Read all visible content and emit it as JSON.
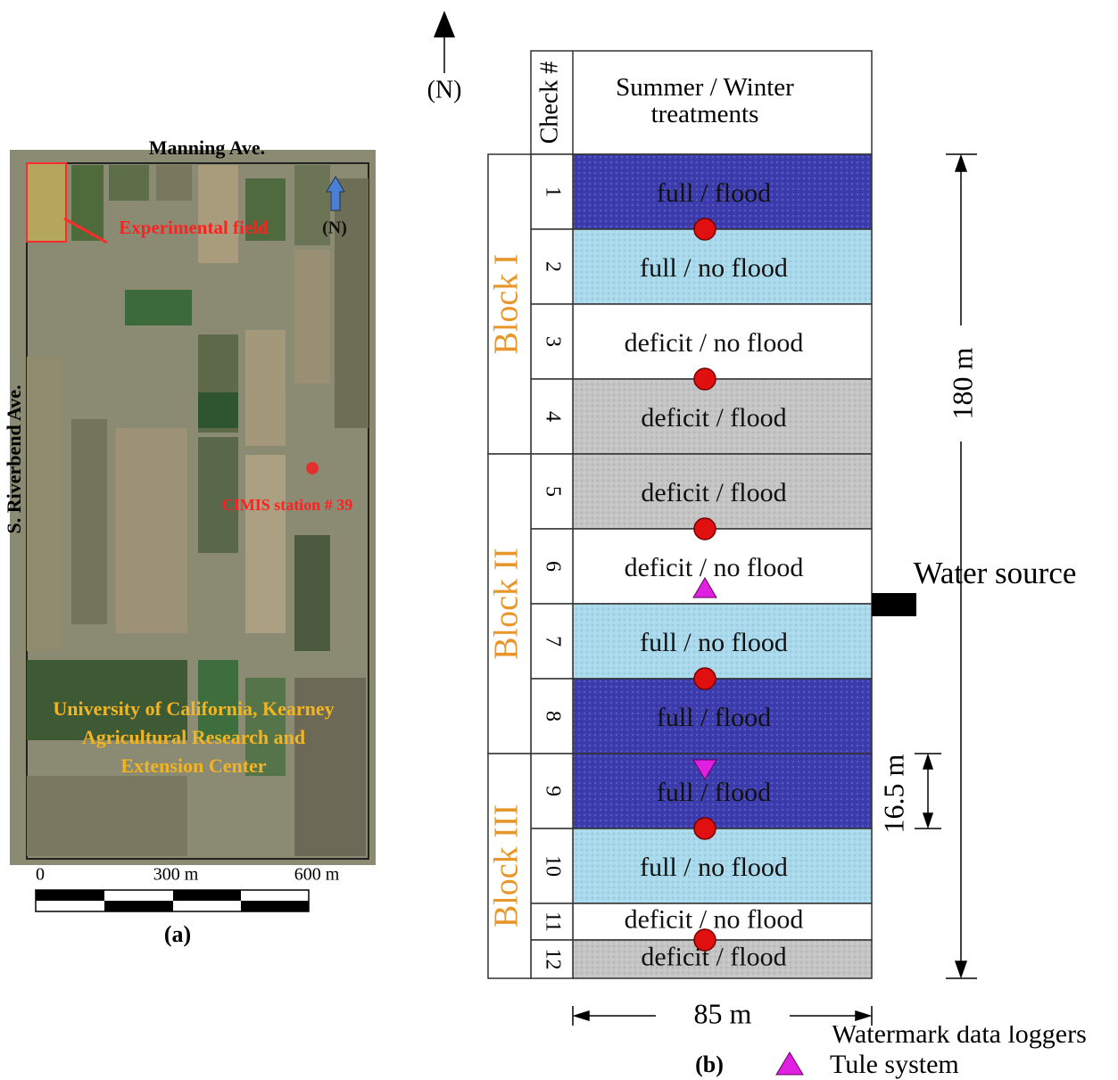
{
  "panel_a": {
    "road_north": "Manning Ave.",
    "road_west": "S. Riverbend Ave.",
    "field_label": "Experimental field",
    "north": "(N)",
    "station": "CIMIS station # 39",
    "campus": [
      "University of California, Kearney",
      "Agricultural Research and",
      "Extension Center"
    ],
    "scale": [
      "0",
      "300 m",
      "600 m"
    ],
    "caption": "(a)"
  },
  "panel_b": {
    "north": "(N)",
    "header": {
      "check": "Check #",
      "treatment": "Summer / Winter\ntreatments"
    },
    "blocks": [
      {
        "label": "Block I",
        "checks": 4
      },
      {
        "label": "Block II",
        "checks": 4
      },
      {
        "label": "Block III",
        "checks": 4
      }
    ],
    "checks": [
      {
        "number": "1",
        "treatment": "full / flood",
        "color": "#3c3cae"
      },
      {
        "number": "2",
        "treatment": "full / no flood",
        "color": "#a9d9ec"
      },
      {
        "number": "3",
        "treatment": "deficit / no flood",
        "color": "#ffffff"
      },
      {
        "number": "4",
        "treatment": "deficit / flood",
        "color": "#c4c4c4"
      },
      {
        "number": "5",
        "treatment": "deficit / flood",
        "color": "#c4c4c4"
      },
      {
        "number": "6",
        "treatment": "deficit / no flood",
        "color": "#ffffff"
      },
      {
        "number": "7",
        "treatment": "full / no flood",
        "color": "#a9d9ec"
      },
      {
        "number": "8",
        "treatment": "full / flood",
        "color": "#3c3cae"
      },
      {
        "number": "9",
        "treatment": "full / flood",
        "color": "#3c3cae"
      },
      {
        "number": "10",
        "treatment": "full / no flood",
        "color": "#a9d9ec"
      },
      {
        "number": "11",
        "treatment": "deficit / no flood",
        "color": "#ffffff"
      },
      {
        "number": "12",
        "treatment": "deficit / flood",
        "color": "#c4c4c4"
      }
    ],
    "length": "180 m",
    "check_width": "16.5 m",
    "width": "85 m",
    "water_source": "Water source",
    "legend": [
      "Watermark data loggers",
      "Tule system"
    ],
    "caption": "(b)"
  }
}
